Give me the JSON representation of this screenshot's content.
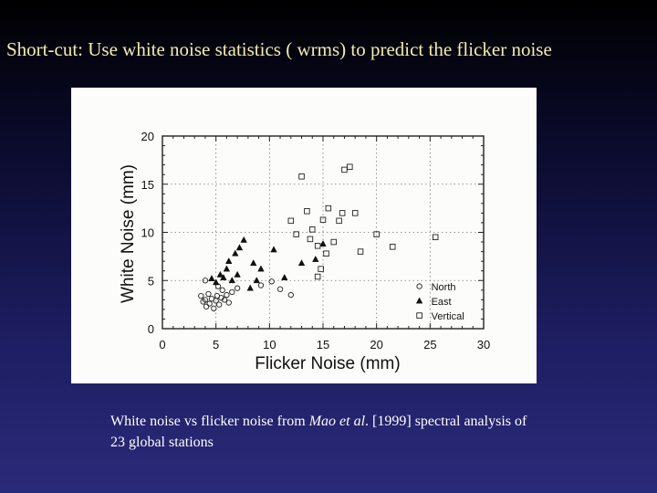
{
  "slide": {
    "title": "Short-cut: Use white noise statistics ( wrms) to predict the flicker noise"
  },
  "caption": {
    "text_before": "White noise vs flicker noise from ",
    "citation_italic": "Mao et al",
    "text_after": ". [1999] spectral analysis of 23 global stations"
  },
  "chart_data": {
    "type": "scatter",
    "xlabel": "Flicker Noise (mm)",
    "ylabel": "White Noise (mm)",
    "xlim": [
      0,
      30
    ],
    "ylim": [
      0,
      20
    ],
    "xticks": [
      0,
      5,
      10,
      15,
      20,
      25,
      30
    ],
    "yticks": [
      0,
      5,
      10,
      15,
      20
    ],
    "grid": true,
    "legend_position": "bottom-right",
    "series": [
      {
        "name": "North",
        "marker": "circle",
        "points": [
          [
            3.6,
            3.4
          ],
          [
            3.8,
            2.8
          ],
          [
            4.0,
            3.0
          ],
          [
            4.1,
            2.3
          ],
          [
            4.3,
            3.6
          ],
          [
            4.4,
            2.6
          ],
          [
            4.6,
            3.1
          ],
          [
            4.8,
            2.1
          ],
          [
            5.0,
            2.9
          ],
          [
            5.1,
            3.4
          ],
          [
            5.3,
            2.5
          ],
          [
            5.5,
            3.2
          ],
          [
            5.6,
            4.0
          ],
          [
            5.8,
            3.0
          ],
          [
            6.0,
            3.5
          ],
          [
            6.2,
            2.7
          ],
          [
            6.5,
            3.8
          ],
          [
            7.0,
            4.2
          ],
          [
            4.0,
            5.0
          ],
          [
            5.2,
            4.4
          ],
          [
            9.2,
            4.5
          ],
          [
            10.2,
            4.9
          ],
          [
            11.0,
            4.1
          ],
          [
            12.0,
            3.5
          ]
        ]
      },
      {
        "name": "East",
        "marker": "triangle",
        "points": [
          [
            4.6,
            5.2
          ],
          [
            5.0,
            4.8
          ],
          [
            5.4,
            5.6
          ],
          [
            5.7,
            5.3
          ],
          [
            6.0,
            6.2
          ],
          [
            6.2,
            7.0
          ],
          [
            6.5,
            5.0
          ],
          [
            6.8,
            7.8
          ],
          [
            7.0,
            5.6
          ],
          [
            7.2,
            8.4
          ],
          [
            7.6,
            9.2
          ],
          [
            8.2,
            4.2
          ],
          [
            8.5,
            6.8
          ],
          [
            8.8,
            5.0
          ],
          [
            9.2,
            6.2
          ],
          [
            10.4,
            8.2
          ],
          [
            11.4,
            5.3
          ],
          [
            13.0,
            6.8
          ],
          [
            14.3,
            7.2
          ],
          [
            15.0,
            8.8
          ]
        ]
      },
      {
        "name": "Vertical",
        "marker": "square",
        "points": [
          [
            12.0,
            11.2
          ],
          [
            12.5,
            9.8
          ],
          [
            13.0,
            15.8
          ],
          [
            13.5,
            12.2
          ],
          [
            13.8,
            9.3
          ],
          [
            14.0,
            10.3
          ],
          [
            14.5,
            8.6
          ],
          [
            14.8,
            6.2
          ],
          [
            15.0,
            11.3
          ],
          [
            15.3,
            7.8
          ],
          [
            15.5,
            12.5
          ],
          [
            16.0,
            9.0
          ],
          [
            16.8,
            12.0
          ],
          [
            17.0,
            16.5
          ],
          [
            17.5,
            16.8
          ],
          [
            18.0,
            12.0
          ],
          [
            18.5,
            8.0
          ],
          [
            20.0,
            9.8
          ],
          [
            21.5,
            8.5
          ],
          [
            25.5,
            9.5
          ],
          [
            14.5,
            5.4
          ],
          [
            16.5,
            11.2
          ]
        ]
      }
    ]
  }
}
